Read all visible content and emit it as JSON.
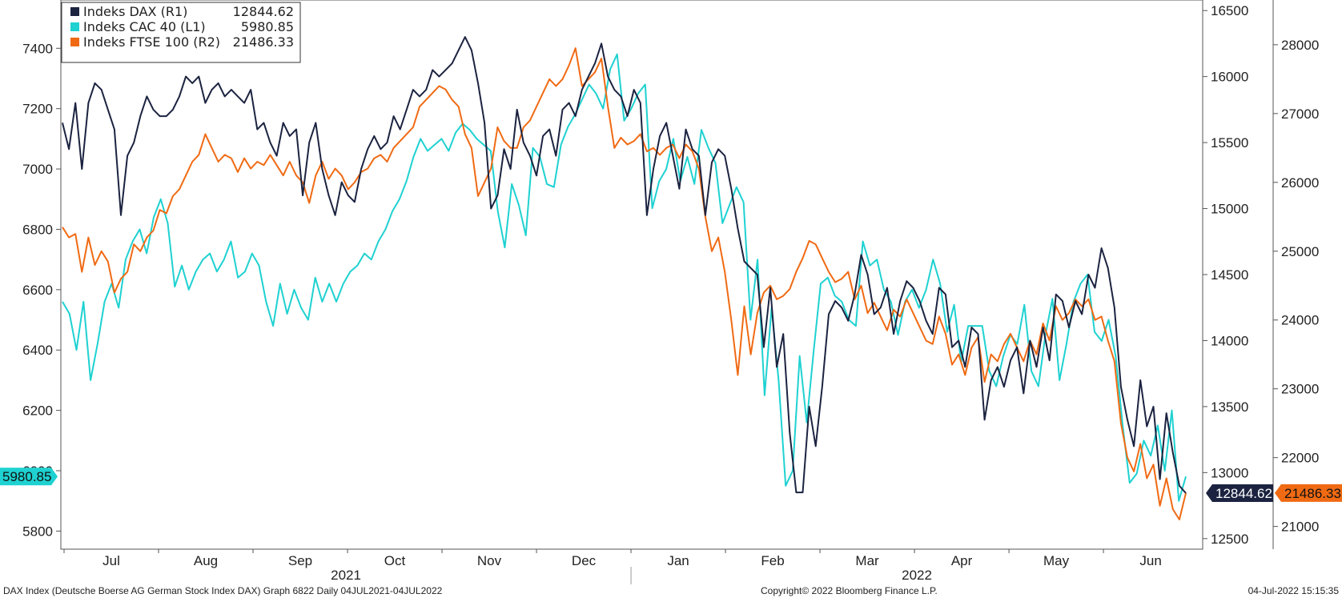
{
  "chart_data": {
    "type": "line",
    "footer": {
      "left": "DAX Index (Deutsche Boerse AG German Stock Index DAX) Graph 6822  Daily 04JUL2021-04JUL2022",
      "center": "Copyright© 2022 Bloomberg Finance L.P.",
      "right": "04-Jul-2022 15:15:35"
    },
    "x_axis": {
      "months": [
        "Jul",
        "Aug",
        "Sep",
        "Oct",
        "Nov",
        "Dec",
        "Jan",
        "Feb",
        "Mar",
        "Apr",
        "May",
        "Jun"
      ],
      "years": [
        "2021",
        "2022"
      ]
    },
    "y_axes": {
      "L1": {
        "ticks": [
          "7400",
          "7200",
          "7000",
          "6800",
          "6600",
          "6400",
          "6200",
          "6000",
          "5800"
        ],
        "range": [
          5740,
          7560
        ]
      },
      "R1": {
        "ticks": [
          "16500",
          "16000",
          "15500",
          "15000",
          "14500",
          "14000",
          "13500",
          "13000",
          "12500"
        ],
        "range": [
          12420,
          16580
        ]
      },
      "R2": {
        "ticks": [
          "28000",
          "27000",
          "26000",
          "25000",
          "24000",
          "23000",
          "22000",
          "21000"
        ],
        "range": [
          20670,
          28650
        ]
      }
    },
    "series": [
      {
        "name": "Indeks DAX (R1)",
        "legend_value": "12844.62",
        "axis": "R1",
        "color": "#1b2340",
        "last_tag": "12844.62",
        "tag_bg": "#1b2340",
        "tag_fg": "#ffffff",
        "values": [
          15650,
          15450,
          15800,
          15300,
          15800,
          15950,
          15900,
          15750,
          15600,
          14950,
          15400,
          15500,
          15700,
          15850,
          15750,
          15700,
          15700,
          15750,
          15850,
          16000,
          15950,
          16000,
          15800,
          15900,
          15950,
          15850,
          15900,
          15850,
          15800,
          15900,
          15600,
          15650,
          15500,
          15400,
          15650,
          15550,
          15600,
          15100,
          15500,
          15650,
          15300,
          15100,
          14950,
          15200,
          15100,
          15050,
          15300,
          15450,
          15550,
          15450,
          15500,
          15700,
          15600,
          15750,
          15900,
          15850,
          15900,
          16050,
          16000,
          16050,
          16100,
          16200,
          16300,
          16200,
          15950,
          15650,
          15000,
          15100,
          15450,
          15300,
          15750,
          15500,
          15400,
          15250,
          15550,
          15600,
          15400,
          15750,
          15800,
          15700,
          15900,
          16000,
          16100,
          16250,
          16000,
          15900,
          15850,
          15700,
          15900,
          15800,
          14950,
          15300,
          15550,
          15650,
          15400,
          15150,
          15600,
          15450,
          15400,
          14950,
          15350,
          15450,
          15400,
          15150,
          14850,
          14600,
          14550,
          14500,
          13950,
          14400,
          13800,
          14050,
          13300,
          12850,
          12850,
          13500,
          13200,
          13650,
          14200,
          14300,
          14250,
          14150,
          14350,
          14650,
          14500,
          14200,
          14250,
          14400,
          14050,
          14300,
          14450,
          14400,
          14300,
          14150,
          14050,
          14400,
          14350,
          13950,
          14000,
          13800,
          14100,
          14050,
          13400,
          13700,
          13800,
          13650,
          13850,
          13950,
          13600,
          14000,
          13800,
          14100,
          13850,
          14350,
          14300,
          14100,
          14300,
          14200,
          14500,
          14400,
          14700,
          14550,
          14250,
          13650,
          13400,
          13200,
          13700,
          13350,
          13500,
          12950,
          13450,
          13150,
          12900,
          12844.62
        ]
      },
      {
        "name": "Indeks CAC 40 (L1)",
        "legend_value": "5980.85",
        "axis": "L1",
        "color": "#1fd1d1",
        "last_tag": "5980.85",
        "tag_bg": "#1fd1d1",
        "tag_fg": "#111111",
        "values": [
          6560,
          6520,
          6400,
          6560,
          6300,
          6420,
          6560,
          6620,
          6540,
          6700,
          6760,
          6800,
          6720,
          6840,
          6900,
          6820,
          6610,
          6680,
          6600,
          6660,
          6700,
          6720,
          6660,
          6700,
          6760,
          6640,
          6660,
          6720,
          6680,
          6560,
          6480,
          6620,
          6520,
          6600,
          6540,
          6500,
          6640,
          6560,
          6620,
          6560,
          6620,
          6660,
          6680,
          6720,
          6700,
          6760,
          6800,
          6860,
          6900,
          6960,
          7040,
          7100,
          7060,
          7080,
          7100,
          7060,
          7120,
          7150,
          7130,
          7100,
          7080,
          7060,
          6860,
          6740,
          6950,
          6880,
          6780,
          7070,
          7040,
          6950,
          6940,
          7080,
          7140,
          7180,
          7230,
          7280,
          7250,
          7200,
          7330,
          7380,
          7160,
          7200,
          7250,
          7280,
          6870,
          6960,
          7000,
          7100,
          6960,
          7040,
          6950,
          7130,
          7070,
          7020,
          6820,
          6880,
          6940,
          6890,
          6500,
          6700,
          6250,
          6540,
          6300,
          5950,
          6000,
          6380,
          6160,
          6400,
          6620,
          6640,
          6580,
          6560,
          6500,
          6480,
          6760,
          6680,
          6700,
          6600,
          6560,
          6450,
          6560,
          6600,
          6540,
          6600,
          6700,
          6620,
          6460,
          6550,
          6360,
          6480,
          6480,
          6480,
          6330,
          6280,
          6380,
          6450,
          6420,
          6550,
          6330,
          6280,
          6450,
          6570,
          6300,
          6420,
          6560,
          6620,
          6650,
          6460,
          6430,
          6500,
          6380,
          6150,
          5960,
          5990,
          6100,
          6050,
          6150,
          6000,
          6200,
          5900,
          5980.85
        ]
      },
      {
        "name": "Indeks FTSE 100 (R2)",
        "legend_value": "21486.33",
        "axis": "R2",
        "color": "#f06a13",
        "last_tag": "21486.33",
        "tag_bg": "#f06a13",
        "tag_fg": "#111111",
        "values": [
          25350,
          25200,
          25250,
          24700,
          25200,
          24800,
          25000,
          24850,
          24400,
          24600,
          24700,
          25100,
          25000,
          25200,
          25300,
          25600,
          25550,
          25800,
          25900,
          26100,
          26300,
          26400,
          26700,
          26500,
          26300,
          26400,
          26350,
          26150,
          26350,
          26200,
          26300,
          26250,
          26400,
          26250,
          26100,
          26300,
          26100,
          26000,
          25700,
          26100,
          26300,
          26050,
          26200,
          26100,
          25900,
          26000,
          26150,
          26200,
          26350,
          26400,
          26300,
          26500,
          26600,
          26700,
          26800,
          27100,
          27200,
          27300,
          27400,
          27350,
          27200,
          27100,
          26700,
          26500,
          25800,
          26000,
          26200,
          26800,
          26600,
          26500,
          26500,
          26800,
          26900,
          27100,
          27300,
          27500,
          27400,
          27500,
          27700,
          27950,
          27400,
          27500,
          27600,
          27800,
          27100,
          26500,
          26650,
          26550,
          26600,
          26700,
          26450,
          26500,
          26400,
          26500,
          26550,
          26350,
          26550,
          26450,
          26200,
          25500,
          25000,
          25200,
          24700,
          24000,
          23200,
          24200,
          23500,
          24100,
          24400,
          24500,
          24300,
          24350,
          24450,
          24700,
          24900,
          25150,
          25100,
          24900,
          24700,
          24550,
          24600,
          24700,
          24300,
          24500,
          24100,
          24250,
          24050,
          23850,
          24150,
          24050,
          24300,
          24100,
          23900,
          23700,
          23650,
          24050,
          23800,
          23350,
          23500,
          23200,
          23600,
          23750,
          23100,
          23500,
          23400,
          23650,
          23800,
          23600,
          23400,
          23700,
          23500,
          23950,
          23700,
          24200,
          24000,
          24100,
          24300,
          24200,
          24300,
          24000,
          24050,
          23700,
          23400,
          22500,
          22000,
          21800,
          22200,
          21700,
          21900,
          21300,
          21700,
          21250,
          21100,
          21486.33
        ]
      }
    ]
  }
}
